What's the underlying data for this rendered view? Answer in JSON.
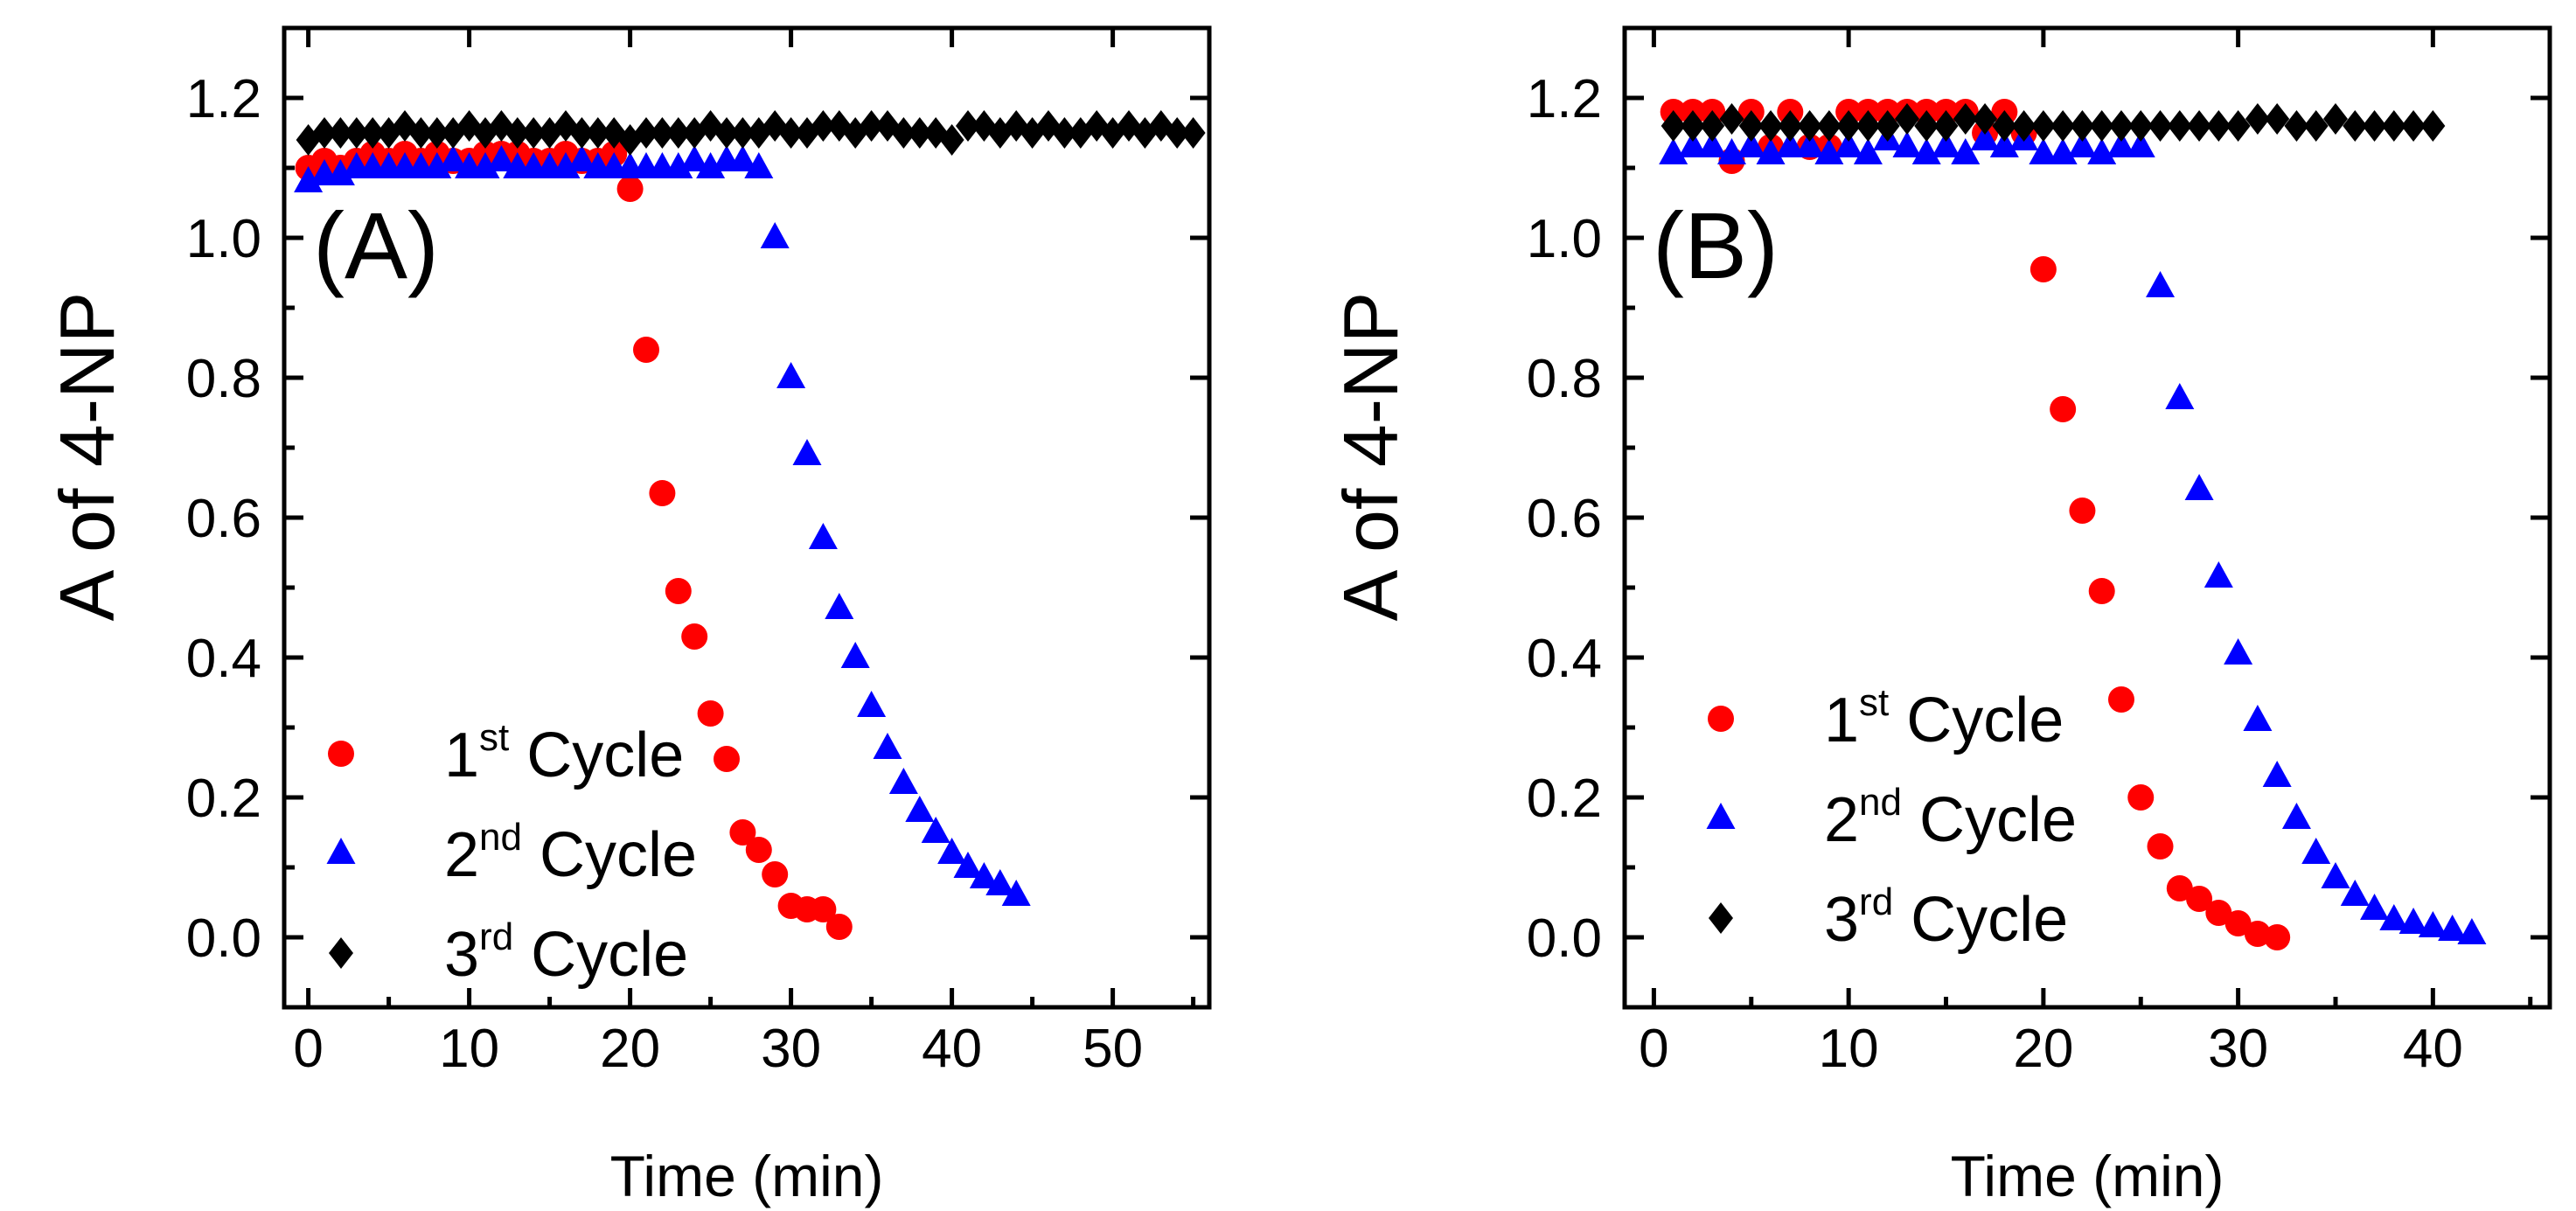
{
  "figure": {
    "description_type": "two-panel scatter plot"
  },
  "chart_data": [
    {
      "type": "scatter",
      "panel_label": "(A)",
      "xlabel": "Time (min)",
      "ylabel": "A of 4-NP",
      "xlim": [
        -1.5,
        56
      ],
      "ylim": [
        -0.1,
        1.3
      ],
      "xticks": [
        0,
        10,
        20,
        30,
        40,
        50
      ],
      "xtick_labels": [
        "0",
        "10",
        "20",
        "30",
        "40",
        "50"
      ],
      "yticks": [
        0.0,
        0.2,
        0.4,
        0.6,
        0.8,
        1.0,
        1.2
      ],
      "ytick_labels": [
        "0.0",
        "0.2",
        "0.4",
        "0.6",
        "0.8",
        "1.0",
        "1.2"
      ],
      "legend_position": "bottom-left",
      "series": [
        {
          "name": "1st Cycle",
          "legend_base": "1",
          "legend_sup": "st",
          "legend_rest": " Cycle",
          "marker": "circle",
          "color": "#ff0000",
          "x": [
            0,
            1,
            2,
            3,
            4,
            5,
            6,
            7,
            8,
            9,
            10,
            11,
            12,
            13,
            14,
            15,
            16,
            17,
            18,
            19,
            20,
            21,
            22,
            23,
            24,
            25,
            26,
            27,
            28,
            29,
            30,
            31,
            32,
            33
          ],
          "y": [
            1.1,
            1.11,
            1.1,
            1.11,
            1.12,
            1.11,
            1.12,
            1.11,
            1.12,
            1.11,
            1.11,
            1.12,
            1.12,
            1.12,
            1.11,
            1.11,
            1.12,
            1.11,
            1.11,
            1.12,
            1.07,
            0.84,
            0.635,
            0.495,
            0.43,
            0.32,
            0.255,
            0.15,
            0.125,
            0.09,
            0.045,
            0.04,
            0.04,
            0.015
          ]
        },
        {
          "name": "2nd Cycle",
          "legend_base": "2",
          "legend_sup": "nd",
          "legend_rest": " Cycle",
          "marker": "triangle",
          "color": "#0000ff",
          "x": [
            0,
            1,
            2,
            3,
            4,
            5,
            6,
            7,
            8,
            9,
            10,
            11,
            12,
            13,
            14,
            15,
            16,
            17,
            18,
            19,
            20,
            21,
            22,
            23,
            24,
            25,
            26,
            27,
            28,
            29,
            30,
            31,
            32,
            33,
            34,
            35,
            36,
            37,
            38,
            39,
            40,
            41,
            42,
            43,
            44
          ],
          "y": [
            1.08,
            1.09,
            1.09,
            1.1,
            1.1,
            1.1,
            1.1,
            1.1,
            1.1,
            1.11,
            1.1,
            1.1,
            1.11,
            1.1,
            1.1,
            1.1,
            1.1,
            1.11,
            1.1,
            1.1,
            1.1,
            1.1,
            1.1,
            1.1,
            1.11,
            1.1,
            1.11,
            1.11,
            1.1,
            1.0,
            0.8,
            0.69,
            0.57,
            0.47,
            0.4,
            0.33,
            0.27,
            0.22,
            0.18,
            0.15,
            0.12,
            0.1,
            0.085,
            0.075,
            0.06
          ]
        },
        {
          "name": "3rd Cycle",
          "legend_base": "3",
          "legend_sup": "rd",
          "legend_rest": " Cycle",
          "marker": "diamond",
          "color": "#000000",
          "x": [
            0,
            1,
            2,
            3,
            4,
            5,
            6,
            7,
            8,
            9,
            10,
            11,
            12,
            13,
            14,
            15,
            16,
            17,
            18,
            19,
            20,
            21,
            22,
            23,
            24,
            25,
            26,
            27,
            28,
            29,
            30,
            31,
            32,
            33,
            34,
            35,
            36,
            37,
            38,
            39,
            40,
            41,
            42,
            43,
            44,
            45,
            46,
            47,
            48,
            49,
            50,
            51,
            52,
            53,
            54,
            55
          ],
          "y": [
            1.14,
            1.15,
            1.15,
            1.15,
            1.15,
            1.15,
            1.16,
            1.15,
            1.15,
            1.15,
            1.16,
            1.15,
            1.16,
            1.15,
            1.15,
            1.15,
            1.16,
            1.15,
            1.15,
            1.15,
            1.14,
            1.15,
            1.15,
            1.15,
            1.15,
            1.16,
            1.15,
            1.15,
            1.15,
            1.16,
            1.15,
            1.15,
            1.16,
            1.16,
            1.15,
            1.16,
            1.16,
            1.15,
            1.15,
            1.15,
            1.14,
            1.16,
            1.16,
            1.15,
            1.16,
            1.15,
            1.16,
            1.15,
            1.15,
            1.16,
            1.15,
            1.16,
            1.15,
            1.16,
            1.15,
            1.15
          ]
        }
      ]
    },
    {
      "type": "scatter",
      "panel_label": "(B)",
      "xlabel": "Time (min)",
      "ylabel": "A of 4-NP",
      "xlim": [
        -1.5,
        46
      ],
      "ylim": [
        -0.1,
        1.3
      ],
      "xticks": [
        0,
        10,
        20,
        30,
        40
      ],
      "xtick_labels": [
        "0",
        "10",
        "20",
        "30",
        "40"
      ],
      "yticks": [
        0.0,
        0.2,
        0.4,
        0.6,
        0.8,
        1.0,
        1.2
      ],
      "ytick_labels": [
        "0.0",
        "0.2",
        "0.4",
        "0.6",
        "0.8",
        "1.0",
        "1.2"
      ],
      "legend_position": "bottom-left",
      "series": [
        {
          "name": "1st Cycle",
          "legend_base": "1",
          "legend_sup": "st",
          "legend_rest": " Cycle",
          "marker": "circle",
          "color": "#ff0000",
          "x": [
            1,
            2,
            3,
            4,
            5,
            6,
            7,
            8,
            9,
            10,
            11,
            12,
            13,
            14,
            15,
            16,
            17,
            18,
            19,
            20,
            21,
            22,
            23,
            24,
            25,
            26,
            27,
            28,
            29,
            30,
            31,
            32
          ],
          "y": [
            1.18,
            1.18,
            1.18,
            1.11,
            1.18,
            1.13,
            1.18,
            1.13,
            1.13,
            1.18,
            1.18,
            1.18,
            1.18,
            1.18,
            1.18,
            1.18,
            1.15,
            1.18,
            1.15,
            0.955,
            0.755,
            0.61,
            0.495,
            0.34,
            0.2,
            0.13,
            0.07,
            0.055,
            0.035,
            0.02,
            0.005,
            0.0
          ]
        },
        {
          "name": "2nd Cycle",
          "legend_base": "2",
          "legend_sup": "nd",
          "legend_rest": " Cycle",
          "marker": "triangle",
          "color": "#0000ff",
          "x": [
            1,
            2,
            3,
            4,
            5,
            6,
            7,
            8,
            9,
            10,
            11,
            12,
            13,
            14,
            15,
            16,
            17,
            18,
            19,
            20,
            21,
            22,
            23,
            24,
            25,
            26,
            27,
            28,
            29,
            30,
            31,
            32,
            33,
            34,
            35,
            36,
            37,
            38,
            39,
            40,
            41,
            42
          ],
          "y": [
            1.12,
            1.13,
            1.13,
            1.12,
            1.13,
            1.12,
            1.13,
            1.13,
            1.12,
            1.13,
            1.12,
            1.14,
            1.13,
            1.12,
            1.13,
            1.12,
            1.14,
            1.13,
            1.14,
            1.12,
            1.12,
            1.13,
            1.12,
            1.13,
            1.13,
            0.93,
            0.77,
            0.64,
            0.515,
            0.405,
            0.31,
            0.23,
            0.17,
            0.12,
            0.085,
            0.06,
            0.04,
            0.025,
            0.02,
            0.015,
            0.01,
            0.005
          ]
        },
        {
          "name": "3rd Cycle",
          "legend_base": "3",
          "legend_sup": "rd",
          "legend_rest": " Cycle",
          "marker": "diamond",
          "color": "#000000",
          "x": [
            1,
            2,
            3,
            4,
            5,
            6,
            7,
            8,
            9,
            10,
            11,
            12,
            13,
            14,
            15,
            16,
            17,
            18,
            19,
            20,
            21,
            22,
            23,
            24,
            25,
            26,
            27,
            28,
            29,
            30,
            31,
            32,
            33,
            34,
            35,
            36,
            37,
            38,
            39,
            40
          ],
          "y": [
            1.16,
            1.16,
            1.16,
            1.17,
            1.16,
            1.16,
            1.16,
            1.16,
            1.16,
            1.16,
            1.16,
            1.16,
            1.17,
            1.16,
            1.16,
            1.17,
            1.17,
            1.16,
            1.16,
            1.16,
            1.16,
            1.16,
            1.16,
            1.16,
            1.16,
            1.16,
            1.16,
            1.16,
            1.16,
            1.16,
            1.17,
            1.17,
            1.16,
            1.16,
            1.17,
            1.16,
            1.16,
            1.16,
            1.16,
            1.16
          ]
        }
      ]
    }
  ]
}
